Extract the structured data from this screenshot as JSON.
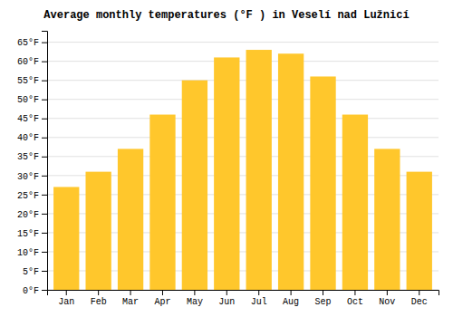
{
  "chart_data": {
    "type": "bar",
    "title": "Average monthly temperatures (°F ) in Veselí nad Lužnicí",
    "categories": [
      "Jan",
      "Feb",
      "Mar",
      "Apr",
      "May",
      "Jun",
      "Jul",
      "Aug",
      "Sep",
      "Oct",
      "Nov",
      "Dec"
    ],
    "values": [
      27,
      31,
      37,
      46,
      55,
      61,
      63,
      62,
      56,
      46,
      37,
      31
    ],
    "color": "#FFC72C",
    "ylim": [
      0,
      68
    ],
    "yticks": [
      {
        "value": 0,
        "label": "0°F"
      },
      {
        "value": 5,
        "label": "5°F"
      },
      {
        "value": 10,
        "label": "10°F"
      },
      {
        "value": 15,
        "label": "15°F"
      },
      {
        "value": 20,
        "label": "20°F"
      },
      {
        "value": 25,
        "label": "25°F"
      },
      {
        "value": 30,
        "label": "30°F"
      },
      {
        "value": 35,
        "label": "35°F"
      },
      {
        "value": 40,
        "label": "40°F"
      },
      {
        "value": 45,
        "label": "45°F"
      },
      {
        "value": 50,
        "label": "50°F"
      },
      {
        "value": 55,
        "label": "55°F"
      },
      {
        "value": 60,
        "label": "60°F"
      },
      {
        "value": 65,
        "label": "65°F"
      }
    ],
    "grid": true
  }
}
